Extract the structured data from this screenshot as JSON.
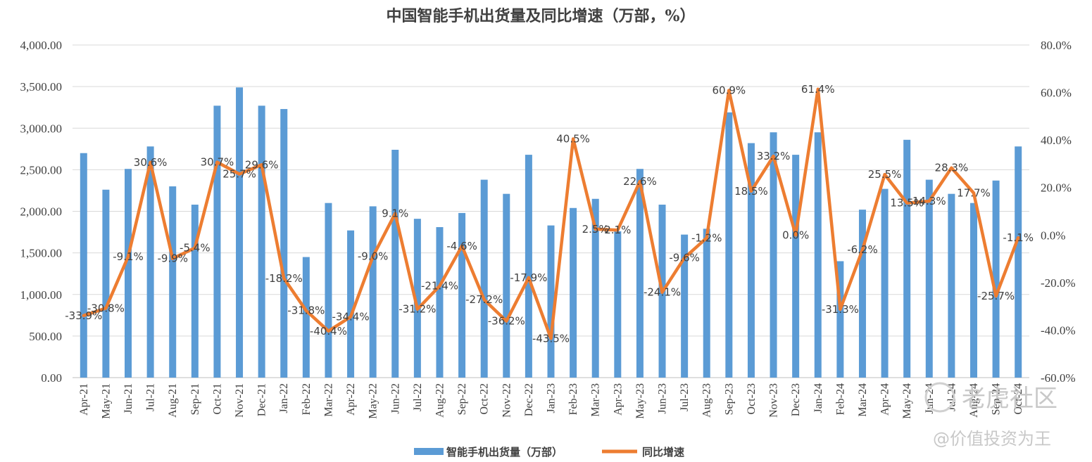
{
  "chart_data": {
    "type": "bar+line",
    "title": "中国智能手机出货量及同比增速（万部，%）",
    "categories": [
      "Apr-21",
      "May-21",
      "Jun-21",
      "Jul-21",
      "Aug-21",
      "Sep-21",
      "Oct-21",
      "Nov-21",
      "Dec-21",
      "Jan-22",
      "Feb-22",
      "Mar-22",
      "Apr-22",
      "May-22",
      "Jun-22",
      "Jul-22",
      "Aug-22",
      "Sep-22",
      "Oct-22",
      "Nov-22",
      "Dec-22",
      "Jan-23",
      "Feb-23",
      "Mar-23",
      "Apr-23",
      "May-23",
      "Jun-23",
      "Jul-23",
      "Aug-23",
      "Sep-23",
      "Oct-23",
      "Nov-23",
      "Dec-23",
      "Jan-24",
      "Feb-24",
      "Mar-24",
      "Apr-24",
      "May-24",
      "Jun-24",
      "Jul-24",
      "Aug-24",
      "Sep-24",
      "Oct-24"
    ],
    "series": [
      {
        "name": "智能手机出货量（万部）",
        "type": "bar",
        "axis": "left",
        "color": "#5b9bd5",
        "values": [
          2700,
          2260,
          2510,
          2780,
          2300,
          2080,
          3270,
          3490,
          3270,
          3230,
          1450,
          2100,
          1770,
          2060,
          2740,
          1910,
          1810,
          1980,
          2380,
          2210,
          2680,
          1830,
          2040,
          2150,
          1760,
          2510,
          2080,
          1720,
          1790,
          3190,
          2820,
          2950,
          2680,
          2950,
          1400,
          2020,
          2270,
          2860,
          2380,
          2210,
          2100,
          2370,
          2780
        ]
      },
      {
        "name": "同比增速",
        "type": "line",
        "axis": "right",
        "color": "#ed7d31",
        "values": [
          -33.9,
          -30.8,
          -9.1,
          30.6,
          -9.9,
          -5.4,
          30.7,
          25.7,
          29.6,
          -18.2,
          -31.8,
          -40.4,
          -34.4,
          -9.0,
          9.1,
          -31.2,
          -21.4,
          -4.6,
          -27.2,
          -36.2,
          -17.9,
          -43.5,
          40.5,
          2.5,
          2.1,
          22.6,
          -24.1,
          -9.6,
          -1.2,
          60.9,
          18.5,
          33.2,
          0.0,
          61.4,
          -31.3,
          -6.2,
          25.5,
          13.5,
          14.3,
          28.3,
          17.7,
          -25.7,
          -1.1
        ],
        "labels": [
          "-33.9%",
          "-30.8%",
          "-9.1%",
          "30.6%",
          "-9.9%",
          "-5.4%",
          "30.7%",
          "25.7%",
          "29.6%",
          "-18.2%",
          "-31.8%",
          "-40.4%",
          "-34.4%",
          "-9.0%",
          "9.1%",
          "-31.2%",
          "-21.4%",
          "-4.6%",
          "-27.2%",
          "-36.2%",
          "-17.9%",
          "-43.5%",
          "40.5%",
          "2.5%",
          "2.1%",
          "22.6%",
          "-24.1%",
          "-9.6%",
          "-1.2%",
          "60.9%",
          "18.5%",
          "33.2%",
          "0.0%",
          "61.4%",
          "-31.3%",
          "-6.2%",
          "25.5%",
          "13.5%",
          "14.3%",
          "28.3%",
          "17.7%",
          "-25.7%",
          "-1.1%"
        ]
      }
    ],
    "left_axis": {
      "ylim": [
        0,
        4000
      ],
      "ticks": [
        "0.00",
        "500.00",
        "1,000.00",
        "1,500.00",
        "2,000.00",
        "2,500.00",
        "3,000.00",
        "3,500.00",
        "4,000.00"
      ]
    },
    "right_axis": {
      "ylim": [
        -60,
        80
      ],
      "ticks": [
        "-60.0%",
        "-40.0%",
        "-20.0%",
        "0.0%",
        "20.0%",
        "40.0%",
        "60.0%",
        "80.0%"
      ]
    },
    "grid": true,
    "legend_position": "bottom"
  },
  "watermark": {
    "line1": "老虎社区",
    "line2": "@价值投资为王"
  }
}
